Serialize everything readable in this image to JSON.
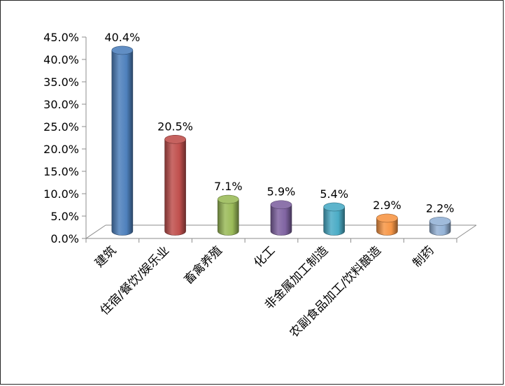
{
  "chart_data": {
    "type": "bar",
    "style": "3d-cylinder",
    "categories": [
      "建筑",
      "住宿/餐饮/娱乐业",
      "畜禽养殖",
      "化工",
      "非金属加工制造",
      "农副食品加工/饮料酿造",
      "制药"
    ],
    "values": [
      40.4,
      20.5,
      7.1,
      5.9,
      5.4,
      2.9,
      2.2
    ],
    "data_labels": [
      "40.4%",
      "20.5%",
      "7.1%",
      "5.9%",
      "5.4%",
      "2.9%",
      "2.2%"
    ],
    "colors": [
      "#4f81bd",
      "#c0504d",
      "#9bbb59",
      "#8064a2",
      "#4bacc6",
      "#f79646",
      "#95b3d7"
    ],
    "y_ticks": [
      "0.0%",
      "5.0%",
      "10.0%",
      "15.0%",
      "20.0%",
      "25.0%",
      "30.0%",
      "35.0%",
      "40.0%",
      "45.0%"
    ],
    "ylim": [
      0,
      45
    ],
    "y_unit": "%",
    "title": "",
    "xlabel": "",
    "ylabel": "",
    "legend": "none",
    "grid": false
  }
}
